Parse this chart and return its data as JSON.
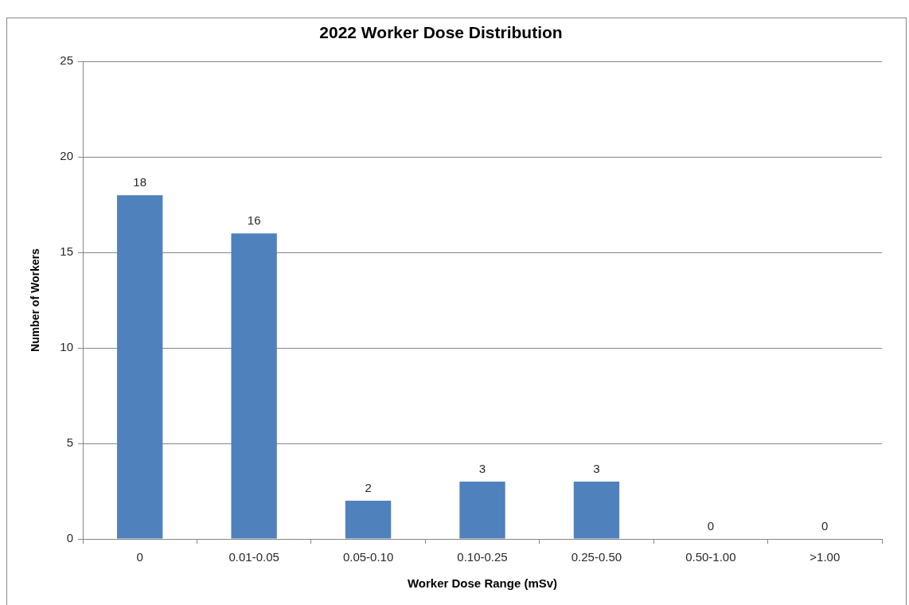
{
  "chart_data": {
    "type": "bar",
    "title": "2022 Worker Dose Distribution",
    "xlabel": "Worker Dose Range (mSv)",
    "ylabel": "Number of Workers",
    "categories": [
      "0",
      "0.01-0.05",
      "0.05-0.10",
      "0.10-0.25",
      "0.25-0.50",
      "0.50-1.00",
      ">1.00"
    ],
    "values": [
      18,
      16,
      2,
      3,
      3,
      0,
      0
    ],
    "color": "#4f81bd",
    "ylim": [
      0,
      25
    ],
    "yticks": [
      0,
      5,
      10,
      15,
      20,
      25
    ],
    "grid": "y",
    "data_labels": true
  }
}
